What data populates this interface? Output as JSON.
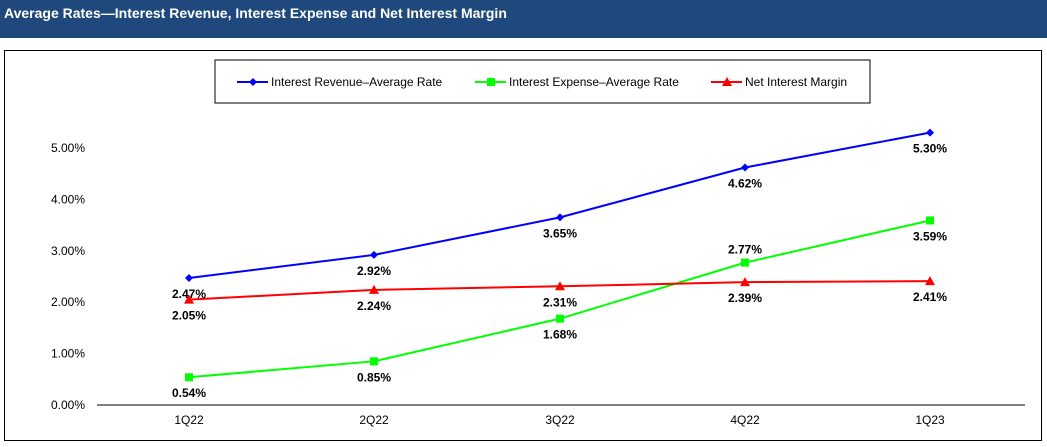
{
  "header": {
    "title": "Average Rates—Interest Revenue, Interest Expense and Net Interest Margin"
  },
  "chart_data": {
    "type": "line",
    "title": "",
    "categories": [
      "1Q22",
      "2Q22",
      "3Q22",
      "4Q22",
      "1Q23"
    ],
    "ylim": [
      0,
      5
    ],
    "yticks": [
      "0.00%",
      "1.00%",
      "2.00%",
      "3.00%",
      "4.00%",
      "5.00%"
    ],
    "grid": false,
    "legend_placement": "top-center",
    "series": [
      {
        "name": "Interest Revenue–Average Rate",
        "color": "#0000FF",
        "marker": "diamond",
        "values": [
          2.47,
          2.92,
          3.65,
          4.62,
          5.3
        ],
        "labels": [
          "2.47%",
          "2.92%",
          "3.65%",
          "4.62%",
          "5.30%"
        ]
      },
      {
        "name": "Interest Expense–Average Rate",
        "color": "#00FF00",
        "marker": "square",
        "values": [
          0.54,
          0.85,
          1.68,
          2.77,
          3.59
        ],
        "labels": [
          "0.54%",
          "0.85%",
          "1.68%",
          "2.77%",
          "3.59%"
        ]
      },
      {
        "name": "Net Interest Margin",
        "color": "#FF0000",
        "marker": "triangle",
        "values": [
          2.05,
          2.24,
          2.31,
          2.39,
          2.41
        ],
        "labels": [
          "2.05%",
          "2.24%",
          "2.31%",
          "2.39%",
          "2.41%"
        ]
      }
    ]
  }
}
